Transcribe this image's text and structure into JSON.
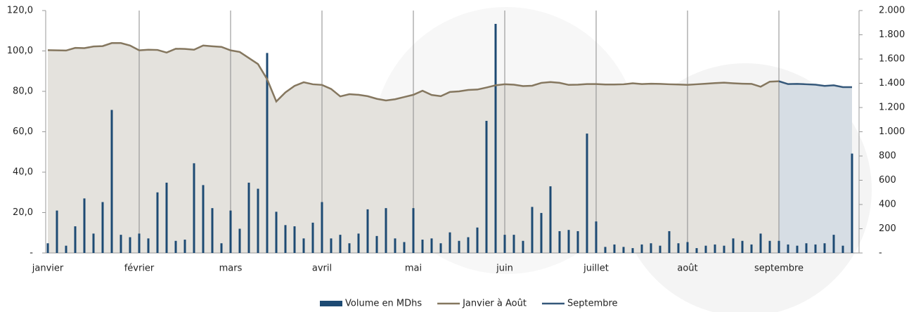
{
  "chart_data": {
    "type": "combo",
    "categories": [
      "janvier",
      null,
      null,
      null,
      null,
      null,
      null,
      null,
      null,
      null,
      "février",
      null,
      null,
      null,
      null,
      null,
      null,
      null,
      null,
      null,
      "mars",
      null,
      null,
      null,
      null,
      null,
      null,
      null,
      null,
      null,
      "avril",
      null,
      null,
      null,
      null,
      null,
      null,
      null,
      null,
      null,
      "mai",
      null,
      null,
      null,
      null,
      null,
      null,
      null,
      null,
      null,
      "juin",
      null,
      null,
      null,
      null,
      null,
      null,
      null,
      null,
      null,
      "juillet",
      null,
      null,
      null,
      null,
      null,
      null,
      null,
      null,
      null,
      "août",
      null,
      null,
      null,
      null,
      null,
      null,
      null,
      null,
      null,
      "septembre",
      null,
      null,
      null,
      null,
      null,
      null,
      null,
      null
    ],
    "ylim": [
      0,
      120
    ],
    "yticks": [
      {
        "value": 0,
        "label": "-"
      },
      {
        "value": 20,
        "label": "20,0"
      },
      {
        "value": 40,
        "label": "40,0"
      },
      {
        "value": 60,
        "label": "60,0"
      },
      {
        "value": 80,
        "label": "80,0"
      },
      {
        "value": 100,
        "label": "100,0"
      },
      {
        "value": 120,
        "label": "120,0"
      }
    ],
    "y2lim": [
      0,
      2000
    ],
    "y2ticks": [
      {
        "value": 0,
        "label": "-"
      },
      200,
      400,
      600,
      800,
      {
        "value": 1000,
        "label": "1.000"
      },
      {
        "value": 1200,
        "label": "1.200"
      },
      {
        "value": 1400,
        "label": "1.400"
      },
      {
        "value": 1600,
        "label": "1.600"
      },
      {
        "value": 1800,
        "label": "1.800"
      },
      {
        "value": 2000,
        "label": "2.000"
      }
    ],
    "series": [
      {
        "name": "Volume en MDhs",
        "type": "bar",
        "axis": "y2",
        "color": "#1d4a73",
        "values": [
          80,
          350,
          60,
          220,
          450,
          160,
          420,
          1180,
          150,
          130,
          160,
          120,
          500,
          580,
          100,
          110,
          740,
          560,
          370,
          80,
          350,
          200,
          580,
          530,
          1650,
          340,
          230,
          220,
          120,
          250,
          420,
          120,
          150,
          80,
          160,
          360,
          140,
          370,
          120,
          90,
          370,
          110,
          120,
          80,
          170,
          100,
          130,
          210,
          1090,
          1890,
          150,
          150,
          100,
          380,
          330,
          550,
          180,
          190,
          180,
          985,
          260,
          50,
          70,
          50,
          40,
          70,
          80,
          60,
          180,
          80,
          90,
          40,
          60,
          70,
          60,
          120,
          100,
          70,
          160,
          100,
          100,
          70,
          60,
          80,
          70,
          80,
          150,
          60,
          820
        ]
      },
      {
        "name": "Janvier à Août",
        "type": "line",
        "axis": "y",
        "color": "#85775f",
        "fill": "#e4e2dd",
        "values": [
          100.4,
          100.3,
          100.2,
          101.5,
          101.4,
          102.2,
          102.4,
          103.9,
          103.9,
          102.7,
          100.3,
          100.6,
          100.5,
          99.2,
          101.1,
          101.0,
          100.6,
          102.7,
          102.3,
          102.0,
          100.3,
          99.5,
          96.5,
          93.5,
          86,
          75,
          79.5,
          82.7,
          84.5,
          83.5,
          83.2,
          81.2,
          77.5,
          78.6,
          78.3,
          77.6,
          76.3,
          75.5,
          76.1,
          77.2,
          78.3,
          80.3,
          78.2,
          77.6,
          79.7,
          80,
          80.7,
          80.9,
          81.9,
          83,
          83.5,
          83.3,
          82.6,
          82.8,
          84.2,
          84.6,
          84.2,
          83.2,
          83.3,
          83.6,
          83.6,
          83.4,
          83.4,
          83.5,
          84,
          83.6,
          83.8,
          83.7,
          83.5,
          83.4,
          83.2,
          83.5,
          83.8,
          84.1,
          84.3,
          84.0,
          83.8,
          83.7,
          82.3,
          84.8,
          85,
          null,
          null,
          null,
          null,
          null,
          null,
          null,
          null
        ]
      },
      {
        "name": "Septembre",
        "type": "line",
        "axis": "y",
        "color": "#35587a",
        "fill": "#d6dde4",
        "values": [
          null,
          null,
          null,
          null,
          null,
          null,
          null,
          null,
          null,
          null,
          null,
          null,
          null,
          null,
          null,
          null,
          null,
          null,
          null,
          null,
          null,
          null,
          null,
          null,
          null,
          null,
          null,
          null,
          null,
          null,
          null,
          null,
          null,
          null,
          null,
          null,
          null,
          null,
          null,
          null,
          null,
          null,
          null,
          null,
          null,
          null,
          null,
          null,
          null,
          null,
          null,
          null,
          null,
          null,
          null,
          null,
          null,
          null,
          null,
          null,
          null,
          null,
          null,
          null,
          null,
          null,
          null,
          null,
          null,
          null,
          null,
          null,
          null,
          null,
          null,
          null,
          null,
          null,
          null,
          null,
          85,
          83.6,
          83.7,
          83.5,
          83.3,
          82.7,
          83.0,
          82.1,
          82.1
        ]
      }
    ],
    "legend": "bottom"
  }
}
